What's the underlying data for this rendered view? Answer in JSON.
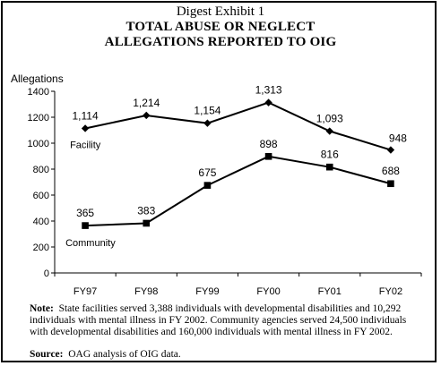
{
  "header": {
    "exhibit": "Digest Exhibit 1",
    "title_line1": "TOTAL ABUSE OR NEGLECT",
    "title_line2": "ALLEGATIONS REPORTED TO OIG"
  },
  "chart_data": {
    "type": "line",
    "ylabel": "Allegations",
    "ylim": [
      0,
      1400
    ],
    "yticks": [
      0,
      200,
      400,
      600,
      800,
      1000,
      1200,
      1400
    ],
    "ytick_labels": [
      "0",
      "200",
      "400",
      "600",
      "800",
      "1000",
      "1200",
      "1400"
    ],
    "categories": [
      "FY97",
      "FY98",
      "FY99",
      "FY00",
      "FY01",
      "FY02"
    ],
    "grid": false,
    "series": [
      {
        "name": "Facility",
        "marker": "diamond",
        "values": [
          1114,
          1214,
          1154,
          1313,
          1093,
          948
        ],
        "labels": [
          "1,114",
          "1,214",
          "1,154",
          "1,313",
          "1,093",
          "948"
        ]
      },
      {
        "name": "Community",
        "marker": "square",
        "values": [
          365,
          383,
          675,
          898,
          816,
          688
        ],
        "labels": [
          "365",
          "383",
          "675",
          "898",
          "816",
          "688"
        ]
      }
    ]
  },
  "footer": {
    "note_label": "Note:",
    "note_text": "State facilities served 3,388 individuals with developmental disabilities and 10,292 individuals with mental illness in FY 2002. Community agencies served 24,500 individuals with developmental disabilities and 160,000 individuals with mental illness in FY 2002.",
    "source_label": "Source:",
    "source_text": "OAG analysis of OIG data."
  },
  "colors": {
    "line": "#000000",
    "background": "#ffffff"
  }
}
